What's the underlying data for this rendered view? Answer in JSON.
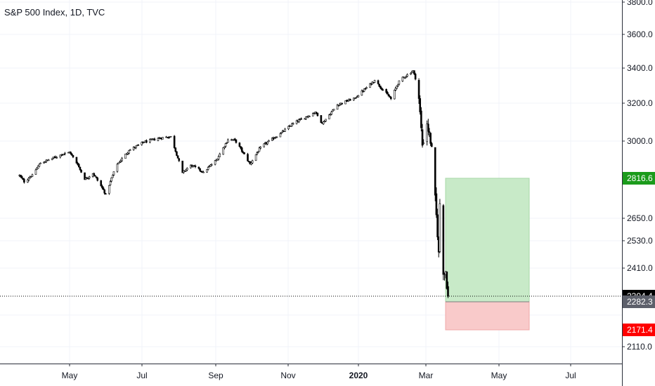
{
  "chart_data": {
    "type": "candlestick",
    "title": "S&P 500 Index, 1D, TVC",
    "xlabel": "",
    "ylabel": "",
    "x_ticks": [
      {
        "label": "May",
        "bold": false
      },
      {
        "label": "Jul",
        "bold": false
      },
      {
        "label": "Sep",
        "bold": false
      },
      {
        "label": "Nov",
        "bold": false
      },
      {
        "label": "2020",
        "bold": true
      },
      {
        "label": "Mar",
        "bold": false
      },
      {
        "label": "May",
        "bold": false
      },
      {
        "label": "Jul",
        "bold": false
      }
    ],
    "y_ticks": [
      "3800.0",
      "3600.0",
      "3400.0",
      "3200.0",
      "3000.0",
      "2650.0",
      "2530.0",
      "2410.0",
      "2110.0"
    ],
    "y_ticks_hidden": [
      "2230.0"
    ],
    "price_labels": [
      {
        "text": "2816.6",
        "bg": "#1b9b1b",
        "fg": "#ffffff"
      },
      {
        "text": "2304.4",
        "bg": "#000000",
        "fg": "#ffffff"
      },
      {
        "text": "2282.3",
        "bg": "#5d606b",
        "fg": "#ffffff"
      },
      {
        "text": "2171.4",
        "bg": "#ff0000",
        "fg": "#ffffff"
      }
    ],
    "position_tool": {
      "type": "long-position",
      "entry": 2282.3,
      "target": 2816.6,
      "stop": 2171.4,
      "profit_color": "#c8eac8",
      "loss_color": "#f9caca"
    },
    "last_price": 2304.4,
    "colors": {
      "up": "#ffffff",
      "down": "#000000",
      "wick": "#000000"
    },
    "series_close": [
      {
        "date": "2019-03-18",
        "close": 2830
      },
      {
        "date": "2019-03-22",
        "close": 2800
      },
      {
        "date": "2019-03-29",
        "close": 2834
      },
      {
        "date": "2019-04-05",
        "close": 2892
      },
      {
        "date": "2019-04-12",
        "close": 2907
      },
      {
        "date": "2019-04-23",
        "close": 2933
      },
      {
        "date": "2019-04-30",
        "close": 2945
      },
      {
        "date": "2019-05-07",
        "close": 2884
      },
      {
        "date": "2019-05-13",
        "close": 2811
      },
      {
        "date": "2019-05-20",
        "close": 2840
      },
      {
        "date": "2019-05-31",
        "close": 2752
      },
      {
        "date": "2019-06-04",
        "close": 2803
      },
      {
        "date": "2019-06-10",
        "close": 2886
      },
      {
        "date": "2019-06-20",
        "close": 2954
      },
      {
        "date": "2019-07-03",
        "close": 2995
      },
      {
        "date": "2019-07-15",
        "close": 3014
      },
      {
        "date": "2019-07-26",
        "close": 3025
      },
      {
        "date": "2019-08-05",
        "close": 2844
      },
      {
        "date": "2019-08-12",
        "close": 2882
      },
      {
        "date": "2019-08-23",
        "close": 2847
      },
      {
        "date": "2019-09-03",
        "close": 2906
      },
      {
        "date": "2019-09-13",
        "close": 3007
      },
      {
        "date": "2019-09-19",
        "close": 3006
      },
      {
        "date": "2019-10-02",
        "close": 2887
      },
      {
        "date": "2019-10-11",
        "close": 2970
      },
      {
        "date": "2019-10-28",
        "close": 3039
      },
      {
        "date": "2019-11-08",
        "close": 3093
      },
      {
        "date": "2019-11-27",
        "close": 3153
      },
      {
        "date": "2019-12-03",
        "close": 3093
      },
      {
        "date": "2019-12-16",
        "close": 3191
      },
      {
        "date": "2019-12-31",
        "close": 3230
      },
      {
        "date": "2020-01-17",
        "close": 3330
      },
      {
        "date": "2020-01-31",
        "close": 3225
      },
      {
        "date": "2020-02-07",
        "close": 3328
      },
      {
        "date": "2020-02-19",
        "close": 3386
      },
      {
        "date": "2020-02-21",
        "close": 3337
      },
      {
        "date": "2020-02-24",
        "close": 3226
      },
      {
        "date": "2020-02-27",
        "close": 2979
      },
      {
        "date": "2020-03-02",
        "close": 3090
      },
      {
        "date": "2020-03-06",
        "close": 2972
      },
      {
        "date": "2020-03-09",
        "close": 2746
      },
      {
        "date": "2020-03-12",
        "close": 2480
      },
      {
        "date": "2020-03-13",
        "close": 2711
      },
      {
        "date": "2020-03-16",
        "close": 2386
      },
      {
        "date": "2020-03-18",
        "close": 2398
      },
      {
        "date": "2020-03-20",
        "close": 2304
      }
    ]
  }
}
